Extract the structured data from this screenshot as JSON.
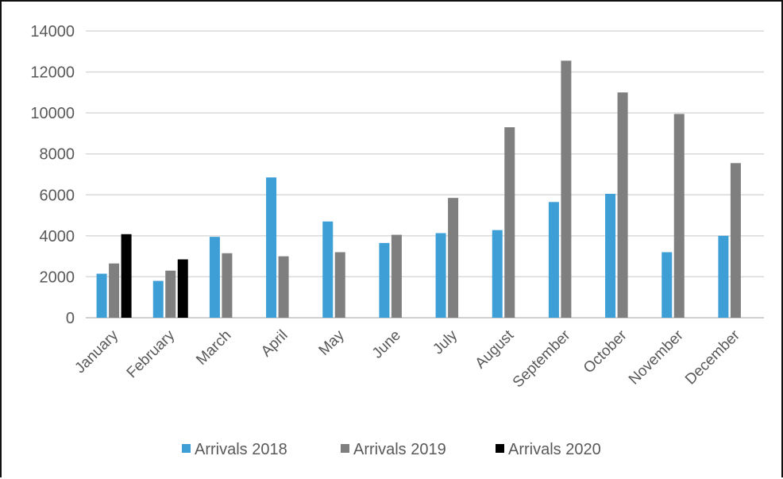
{
  "chart_data": {
    "type": "bar",
    "title": "",
    "xlabel": "",
    "ylabel": "",
    "ylim": [
      0,
      14000
    ],
    "yticks": [
      0,
      2000,
      4000,
      6000,
      8000,
      10000,
      12000,
      14000
    ],
    "grid": true,
    "legend_position": "bottom",
    "categories": [
      "January",
      "February",
      "March",
      "April",
      "May",
      "June",
      "July",
      "August",
      "September",
      "October",
      "November",
      "December"
    ],
    "series": [
      {
        "name": "Arrivals 2018",
        "color": "#3d9fd6",
        "values": [
          2150,
          1800,
          3950,
          6850,
          4700,
          3650,
          4130,
          4280,
          5650,
          6050,
          3200,
          4000
        ]
      },
      {
        "name": "Arrivals 2019",
        "color": "#7f7f7f",
        "values": [
          2650,
          2300,
          3150,
          3000,
          3200,
          4050,
          5850,
          9300,
          12550,
          11000,
          9950,
          7550
        ]
      },
      {
        "name": "Arrivals 2020",
        "color": "#000000",
        "values": [
          4080,
          2850,
          null,
          null,
          null,
          null,
          null,
          null,
          null,
          null,
          null,
          null
        ]
      }
    ]
  }
}
